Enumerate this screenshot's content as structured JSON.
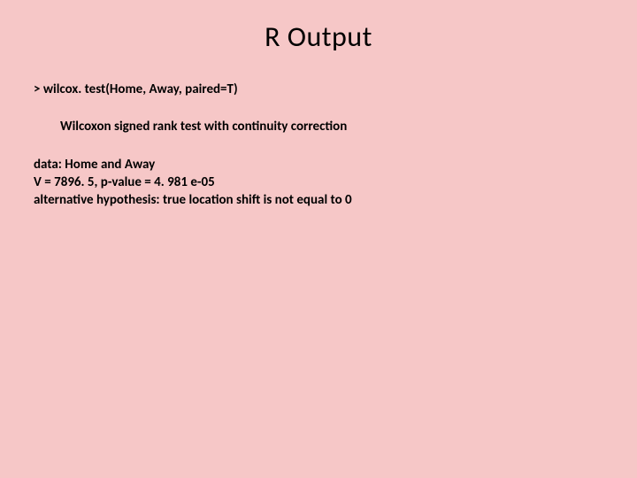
{
  "slide": {
    "title": "R Output",
    "background_color": "#f6c7c7",
    "title_color": "#000000",
    "title_fontsize": 32,
    "body_fontsize": 15,
    "body_fontweight": 700,
    "body_color": "#000000",
    "font_family": "Calibri, Arial, sans-serif"
  },
  "r_output": {
    "command": "> wilcox. test(Home, Away, paired=T)",
    "test_name": "Wilcoxon signed rank test with continuity correction",
    "data_line": "data:  Home and Away",
    "stat_line": "V = 7896. 5, p-value = 4. 981 e-05",
    "alt_hyp_line": "alternative hypothesis: true location shift is not equal to 0"
  }
}
